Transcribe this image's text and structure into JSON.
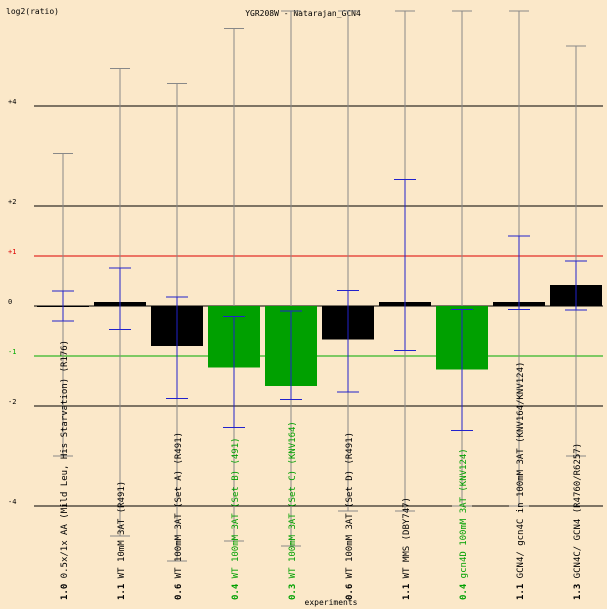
{
  "chart_data": {
    "type": "bar",
    "title": "YGR208W - Natarajan_GCN4",
    "ylabel": "log2(ratio)",
    "xlabel": "experiments",
    "ylim": [
      -4,
      6
    ],
    "y_ticks": [
      {
        "value": 4,
        "label": "+4"
      },
      {
        "value": 2,
        "label": "+2"
      },
      {
        "value": 1,
        "label": "+1"
      },
      {
        "value": 0,
        "label": "0"
      },
      {
        "value": -1,
        "label": "-1"
      },
      {
        "value": -2,
        "label": "-2"
      },
      {
        "value": -4,
        "label": "-4"
      }
    ],
    "reference_lines": [
      {
        "value": 1,
        "color": "#dd0000"
      },
      {
        "value": -1,
        "color": "#00aa00"
      }
    ],
    "colors": {
      "background": "#fbe8c9",
      "up_bar": "#000000",
      "down_bar": "#00a000",
      "error_bar": "#2222cc",
      "vertical_line": "#888888",
      "grid": "#000000"
    },
    "categories": [
      {
        "label": "0.5x/1x AA (Mild Leu, His Starvation) (R176)",
        "prefix": "1.0",
        "value": 0.0,
        "err_low": -0.3,
        "err_high": 0.3,
        "whisker_low": -3.0,
        "whisker_high": 3.05,
        "color_class": "up"
      },
      {
        "label": "WT  10mM 3AT (R491)",
        "prefix": "1.1",
        "value": 0.08,
        "err_low": -0.55,
        "err_high": 0.68,
        "whisker_low": -4.6,
        "whisker_high": 4.75,
        "color_class": "up"
      },
      {
        "label": "WT  100mM 3AT (Set A) (R491)",
        "prefix": "0.6",
        "value": -0.8,
        "err_low": -1.05,
        "err_high": 0.98,
        "whisker_low": -5.1,
        "whisker_high": 4.45,
        "color_class": "up"
      },
      {
        "label": "WT  100mM 3AT (Set B) (491)",
        "prefix": "0.4",
        "value": -1.23,
        "err_low": -1.2,
        "err_high": 1.02,
        "whisker_low": -4.7,
        "whisker_high": 5.55,
        "color_class": "down"
      },
      {
        "label": "WT  100mM 3AT (Set C) (KNV164)",
        "prefix": "0.3",
        "value": -1.6,
        "err_low": -0.27,
        "err_high": 1.5,
        "whisker_low": -4.8,
        "whisker_high": 5.9,
        "color_class": "down"
      },
      {
        "label": "WT  100mM 3AT (Set D) (R491)",
        "prefix": "0.6",
        "value": -0.67,
        "err_low": -1.05,
        "err_high": 0.98,
        "whisker_low": -4.1,
        "whisker_high": 5.9,
        "color_class": "up"
      },
      {
        "label": "WT  MMS  (DBY747)",
        "prefix": "1.1",
        "value": 0.08,
        "err_low": -0.97,
        "err_high": 2.45,
        "whisker_low": -4.1,
        "whisker_high": 5.9,
        "color_class": "up"
      },
      {
        "label": "gcn4D  100mM 3AT (KNV124)",
        "prefix": "0.4",
        "value": -1.27,
        "err_low": -1.22,
        "err_high": 1.2,
        "whisker_low": -4.0,
        "whisker_high": 5.9,
        "color_class": "down"
      },
      {
        "label": "GCN4/ gcn4C in 100mM 3AT (KNV164/KNV124)",
        "prefix": "1.1",
        "value": 0.08,
        "err_low": -0.15,
        "err_high": 1.32,
        "whisker_low": -4.0,
        "whisker_high": 5.9,
        "color_class": "up"
      },
      {
        "label": "GCN4C/ GCN4 (R4760/R6257)",
        "prefix": "1.3",
        "value": 0.42,
        "err_low": -0.5,
        "err_high": 0.48,
        "whisker_low": -3.0,
        "whisker_high": 5.2,
        "color_class": "up"
      }
    ]
  }
}
